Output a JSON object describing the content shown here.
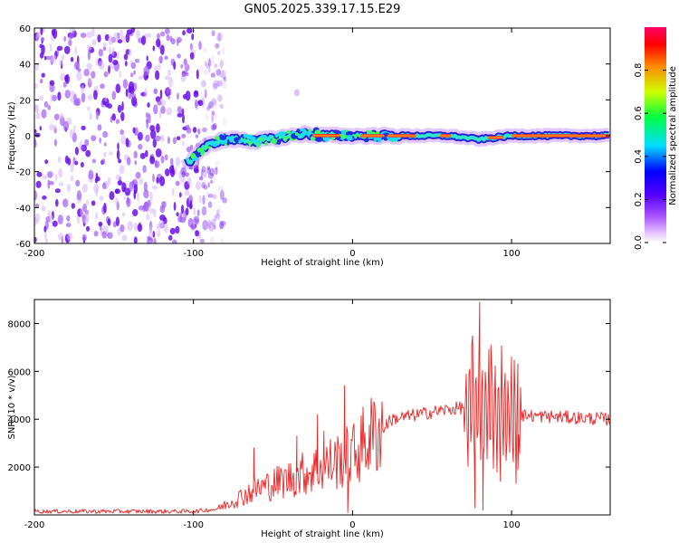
{
  "figure_title": "GN05.2025.339.17.15.E29",
  "chart_data": [
    {
      "type": "heatmap",
      "name": "spectrogram",
      "xlabel": "Height of straight line (km)",
      "ylabel": "Frequency (Hz)",
      "xlim": [
        -200,
        162
      ],
      "ylim": [
        -60,
        60
      ],
      "xticks": [
        -200,
        -100,
        0,
        100
      ],
      "yticks": [
        -60,
        -40,
        -20,
        0,
        20,
        40,
        60
      ],
      "noise_region_x": [
        -200,
        -80
      ],
      "ridge": [
        {
          "x": -102,
          "f": -14
        },
        {
          "x": -97,
          "f": -9
        },
        {
          "x": -92,
          "f": -6
        },
        {
          "x": -85,
          "f": -3
        },
        {
          "x": -75,
          "f": -2
        },
        {
          "x": -60,
          "f": -3
        },
        {
          "x": -45,
          "f": -1
        },
        {
          "x": -30,
          "f": 1
        },
        {
          "x": -15,
          "f": 0
        },
        {
          "x": 0,
          "f": 0
        },
        {
          "x": 20,
          "f": 0
        },
        {
          "x": 40,
          "f": 0
        },
        {
          "x": 60,
          "f": 0
        },
        {
          "x": 80,
          "f": -2
        },
        {
          "x": 100,
          "f": 0
        },
        {
          "x": 130,
          "f": 0
        },
        {
          "x": 162,
          "f": 0
        }
      ],
      "colorbar": {
        "label": "Normalized spectral amplitude",
        "range": [
          0,
          1
        ],
        "ticks": [
          0.0,
          0.2,
          0.4,
          0.6,
          0.8
        ],
        "tick_labels": [
          "0.0",
          "0.2",
          "0.4",
          "0.6",
          "0.8"
        ],
        "colors": [
          "#ffffff",
          "#cc88ff",
          "#5500ff",
          "#0000ff",
          "#00ddff",
          "#00ff44",
          "#ccff00",
          "#ff8800",
          "#ff0000",
          "#ff0066"
        ]
      }
    },
    {
      "type": "line",
      "name": "snr",
      "xlabel": "Height of straight line (km)",
      "ylabel": "SNR (10 * v/v)",
      "xlim": [
        -200,
        162
      ],
      "ylim": [
        0,
        9000
      ],
      "xticks": [
        -200,
        -100,
        0,
        100
      ],
      "yticks": [
        2000,
        4000,
        6000,
        8000
      ],
      "color": "#ee2222",
      "envelope": [
        {
          "x": -200,
          "y": 150
        },
        {
          "x": -100,
          "y": 150
        },
        {
          "x": -85,
          "y": 250
        },
        {
          "x": -75,
          "y": 600
        },
        {
          "x": -60,
          "y": 1100
        },
        {
          "x": -40,
          "y": 1500
        },
        {
          "x": -20,
          "y": 2000
        },
        {
          "x": 0,
          "y": 2500
        },
        {
          "x": 10,
          "y": 3200
        },
        {
          "x": 25,
          "y": 4000
        },
        {
          "x": 50,
          "y": 4300
        },
        {
          "x": 70,
          "y": 4500
        },
        {
          "x": 80,
          "y": 4500
        },
        {
          "x": 95,
          "y": 4200
        },
        {
          "x": 110,
          "y": 4150
        },
        {
          "x": 162,
          "y": 4000
        }
      ],
      "spikes": [
        {
          "x": -62,
          "y": 2800
        },
        {
          "x": -35,
          "y": 3300
        },
        {
          "x": -22,
          "y": 4200
        },
        {
          "x": -18,
          "y": 3500
        },
        {
          "x": -5,
          "y": 5400
        },
        {
          "x": -3,
          "y": 100
        },
        {
          "x": 75,
          "y": 7100
        },
        {
          "x": 77,
          "y": 300
        },
        {
          "x": 80,
          "y": 8900
        },
        {
          "x": 82,
          "y": 200
        },
        {
          "x": 87,
          "y": 7100
        },
        {
          "x": 93,
          "y": 1400
        },
        {
          "x": 100,
          "y": 5700
        },
        {
          "x": 104,
          "y": 1900
        }
      ]
    }
  ]
}
